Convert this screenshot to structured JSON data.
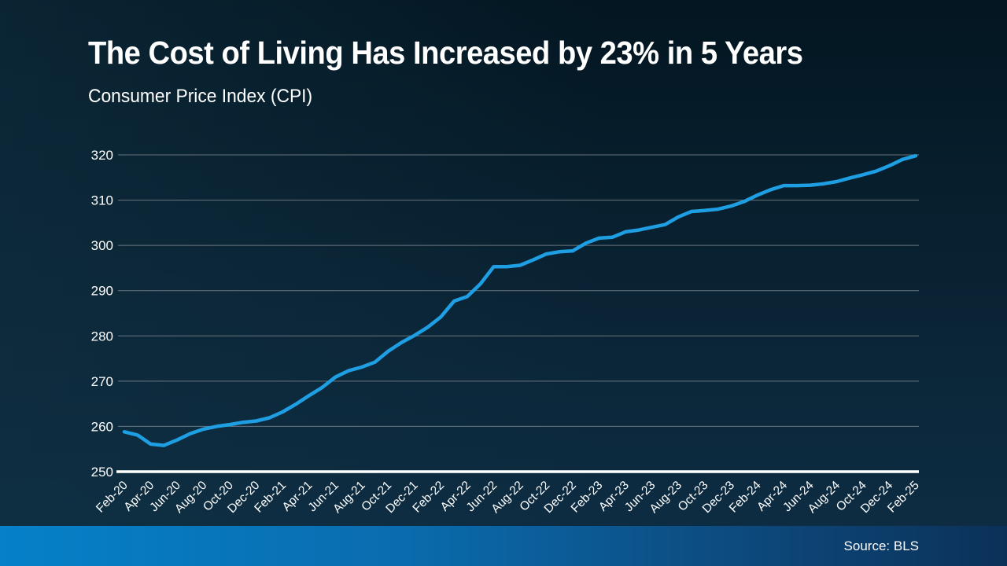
{
  "slide": {
    "title": "The Cost of Living Has Increased by 23% in 5 Years",
    "subtitle": "Consumer Price Index (CPI)",
    "source": "Source: BLS"
  },
  "colors": {
    "background_top": "#031621",
    "background_bottom": "#0e2e45",
    "line": "#1f9fe3",
    "gridline": "#848a90",
    "axis_baseline": "#ffffff",
    "tick_text": "#ffffff",
    "footer_left": "#0581c9",
    "footer_right": "#0b3158"
  },
  "chart_data": {
    "type": "line",
    "title": "Consumer Price Index (CPI)",
    "xlabel": "",
    "ylabel": "",
    "ylim": [
      250,
      320
    ],
    "y_ticks": [
      250,
      260,
      270,
      280,
      290,
      300,
      310,
      320
    ],
    "grid": "horizontal",
    "legend": "none",
    "x_label_every": 2,
    "x": [
      "Feb-20",
      "Mar-20",
      "Apr-20",
      "May-20",
      "Jun-20",
      "Jul-20",
      "Aug-20",
      "Sep-20",
      "Oct-20",
      "Nov-20",
      "Dec-20",
      "Jan-21",
      "Feb-21",
      "Mar-21",
      "Apr-21",
      "May-21",
      "Jun-21",
      "Jul-21",
      "Aug-21",
      "Sep-21",
      "Oct-21",
      "Nov-21",
      "Dec-21",
      "Jan-22",
      "Feb-22",
      "Mar-22",
      "Apr-22",
      "May-22",
      "Jun-22",
      "Jul-22",
      "Aug-22",
      "Sep-22",
      "Oct-22",
      "Nov-22",
      "Dec-22",
      "Jan-23",
      "Feb-23",
      "Mar-23",
      "Apr-23",
      "May-23",
      "Jun-23",
      "Jul-23",
      "Aug-23",
      "Sep-23",
      "Oct-23",
      "Nov-23",
      "Dec-23",
      "Jan-24",
      "Feb-24",
      "Mar-24",
      "Apr-24",
      "May-24",
      "Jun-24",
      "Jul-24",
      "Aug-24",
      "Sep-24",
      "Oct-24",
      "Nov-24",
      "Dec-24",
      "Jan-25",
      "Feb-25"
    ],
    "values": [
      258.8,
      258.1,
      256.1,
      255.8,
      257.0,
      258.4,
      259.4,
      260.0,
      260.4,
      260.9,
      261.2,
      261.9,
      263.2,
      264.9,
      266.8,
      268.6,
      270.9,
      272.3,
      273.1,
      274.2,
      276.6,
      278.5,
      280.1,
      281.9,
      284.2,
      287.7,
      288.7,
      291.5,
      295.3,
      295.3,
      295.6,
      296.8,
      298.1,
      298.6,
      298.8,
      300.5,
      301.6,
      301.8,
      303.0,
      303.4,
      304.0,
      304.6,
      306.3,
      307.5,
      307.7,
      308.0,
      308.7,
      309.7,
      311.1,
      312.3,
      313.2,
      313.2,
      313.3,
      313.6,
      314.1,
      314.9,
      315.6,
      316.4,
      317.6,
      319.0,
      319.8
    ]
  }
}
